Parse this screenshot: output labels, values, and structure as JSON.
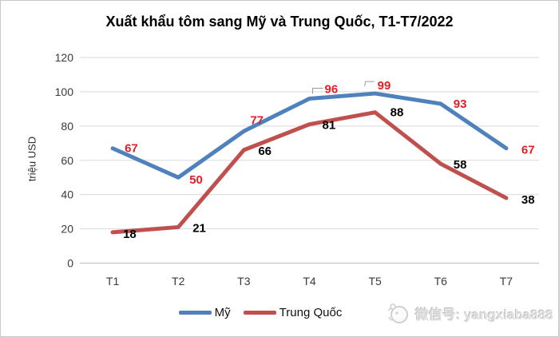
{
  "chart_data": {
    "type": "line",
    "title": "Xuất khẩu tôm sang Mỹ và Trung Quốc, T1-T7/2022",
    "ylabel": "triệu USD",
    "xlabel": "",
    "categories": [
      "T1",
      "T2",
      "T3",
      "T4",
      "T5",
      "T6",
      "T7"
    ],
    "series": [
      {
        "name": "Mỹ",
        "color": "#4F81BD",
        "label_color": "#E01F26",
        "values": [
          67,
          50,
          77,
          96,
          99,
          93,
          67
        ],
        "label_offsets": [
          [
            15,
            5
          ],
          [
            14,
            8
          ],
          [
            8,
            -9
          ],
          [
            19,
            -7
          ],
          [
            3,
            -5
          ],
          [
            16,
            5
          ],
          [
            19,
            7
          ]
        ],
        "leaders": [
          null,
          null,
          null,
          [
            [
              4,
              -6
            ],
            [
              4,
              -13
            ],
            [
              17,
              -13
            ]
          ],
          [
            [
              -13,
              -9
            ],
            [
              -12,
              -15
            ],
            [
              -1,
              -15
            ]
          ],
          null,
          null
        ]
      },
      {
        "name": "Trung Quốc",
        "color": "#C0504D",
        "label_color": "#000000",
        "values": [
          18,
          21,
          66,
          81,
          88,
          58,
          38
        ],
        "label_offsets": [
          [
            13,
            7
          ],
          [
            18,
            6
          ],
          [
            18,
            6
          ],
          [
            16,
            6
          ],
          [
            19,
            5
          ],
          [
            16,
            6
          ],
          [
            19,
            7
          ]
        ],
        "leaders": [
          null,
          null,
          null,
          null,
          null,
          null,
          null
        ]
      }
    ],
    "y_ticks": [
      0,
      20,
      40,
      60,
      80,
      100,
      120
    ],
    "ylim": [
      0,
      120
    ],
    "grid": true,
    "legend_position": "bottom"
  },
  "colors": {
    "gridline": "#D9D9D9",
    "axis_line": "#C3C3C3",
    "tick_text": "#3A3A3A",
    "leader_line": "#999999"
  },
  "watermark": {
    "text": "微信号: yangxiaba888"
  }
}
